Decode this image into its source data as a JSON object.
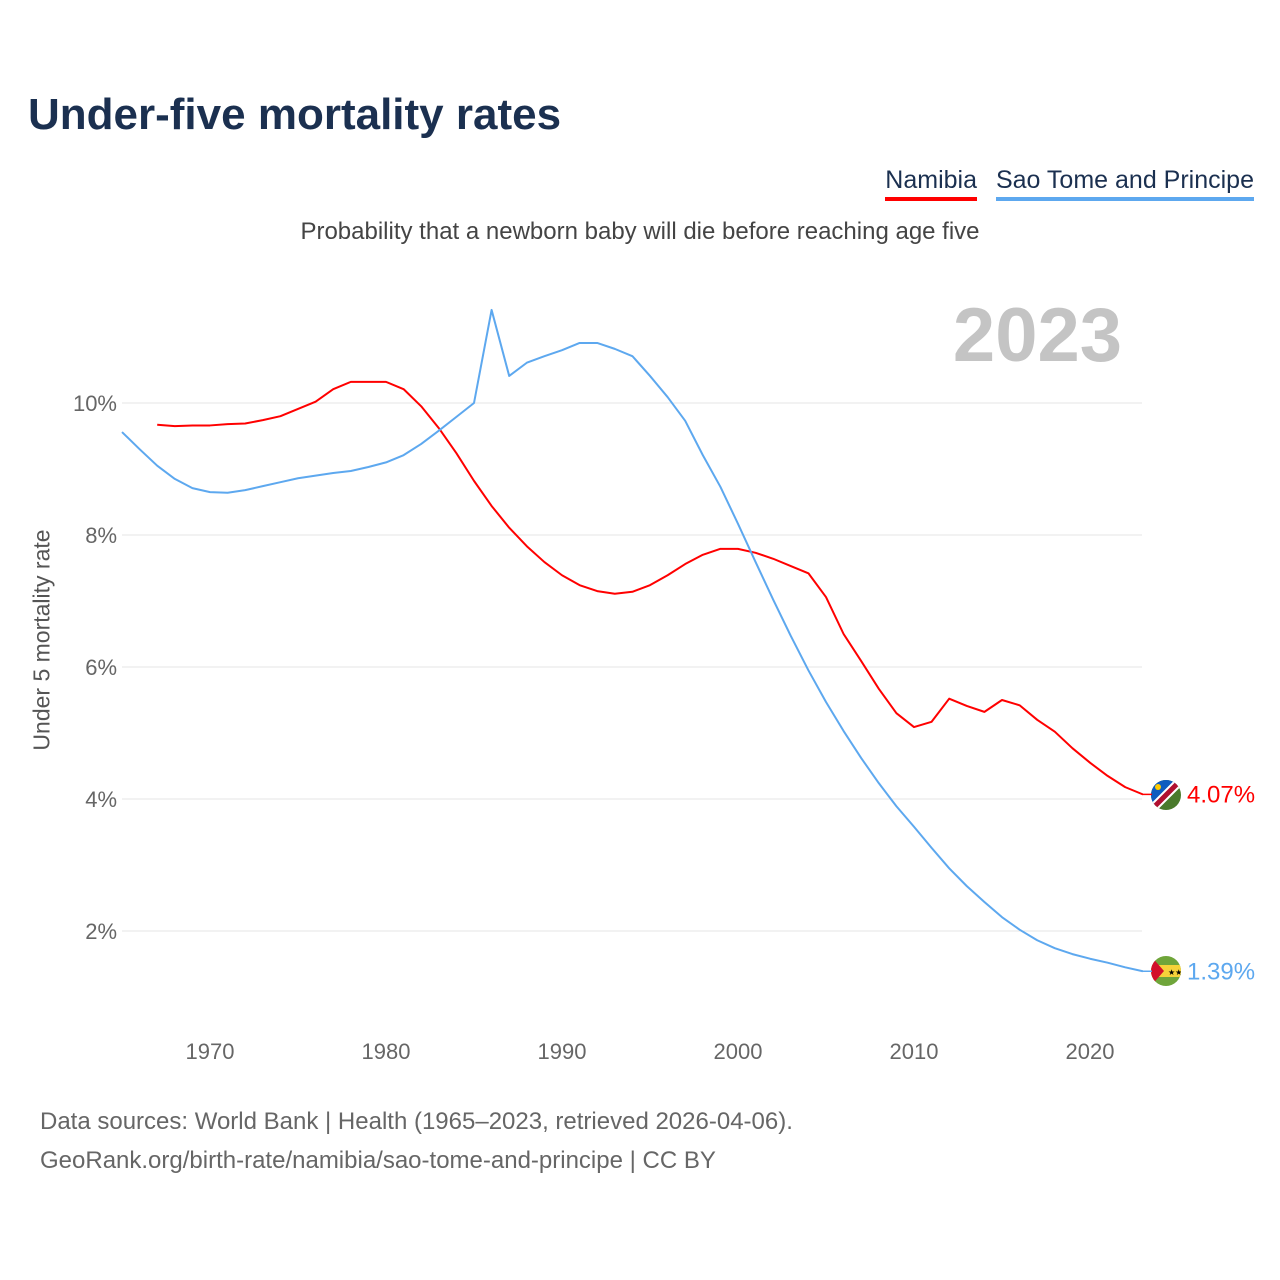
{
  "chart_data": {
    "type": "line",
    "title": "Under-five mortality rates",
    "subtitle": "Probability that a newborn baby will die before reaching age five",
    "year_label": "2023",
    "ylabel": "Under 5 mortality rate",
    "xlabel": "",
    "xlim": [
      1965,
      2023
    ],
    "ylim": [
      0,
      11.5
    ],
    "yticks": [
      2,
      4,
      6,
      8,
      10
    ],
    "ytick_labels": [
      "2%",
      "4%",
      "6%",
      "8%",
      "10%"
    ],
    "xticks": [
      1970,
      1980,
      1990,
      2000,
      2010,
      2020
    ],
    "xtick_labels": [
      "1970",
      "1980",
      "1990",
      "2000",
      "2010",
      "2020"
    ],
    "grid": true,
    "legend_position": "top-right",
    "series": [
      {
        "name": "Namibia",
        "color": "#ff0000",
        "end_label": "4.07%",
        "x_start": 1967,
        "values": [
          9.67,
          9.65,
          9.66,
          9.66,
          9.68,
          9.69,
          9.74,
          9.8,
          9.91,
          10.02,
          10.21,
          10.32,
          10.32,
          10.32,
          10.21,
          9.95,
          9.62,
          9.24,
          8.82,
          8.44,
          8.11,
          7.83,
          7.59,
          7.39,
          7.24,
          7.15,
          7.11,
          7.14,
          7.24,
          7.39,
          7.56,
          7.7,
          7.79,
          7.79,
          7.73,
          7.64,
          7.53,
          7.42,
          7.06,
          6.5,
          6.09,
          5.67,
          5.3,
          5.09,
          5.17,
          5.52,
          5.41,
          5.32,
          5.5,
          5.42,
          5.2,
          5.02,
          4.77,
          4.55,
          4.35,
          4.18,
          4.07
        ]
      },
      {
        "name": "Sao Tome and Principe",
        "color": "#5da8ef",
        "end_label": "1.39%",
        "x_start": 1965,
        "values": [
          9.56,
          9.3,
          9.05,
          8.85,
          8.71,
          8.65,
          8.64,
          8.68,
          8.74,
          8.8,
          8.86,
          8.9,
          8.94,
          8.97,
          9.03,
          9.1,
          9.21,
          9.38,
          9.58,
          9.79,
          10.0,
          11.41,
          10.41,
          10.61,
          10.71,
          10.8,
          10.91,
          10.91,
          10.82,
          10.71,
          10.41,
          10.09,
          9.73,
          9.21,
          8.73,
          8.17,
          7.59,
          7.02,
          6.47,
          5.95,
          5.47,
          5.03,
          4.62,
          4.24,
          3.89,
          3.58,
          3.26,
          2.95,
          2.68,
          2.44,
          2.21,
          2.02,
          1.86,
          1.74,
          1.65,
          1.58,
          1.52,
          1.45,
          1.39
        ]
      }
    ]
  },
  "sources": {
    "line1": "Data sources: World Bank | Health (1965–2023, retrieved 2026-04-06).",
    "line2": "GeoRank.org/birth-rate/namibia/sao-tome-and-principe | CC BY"
  }
}
